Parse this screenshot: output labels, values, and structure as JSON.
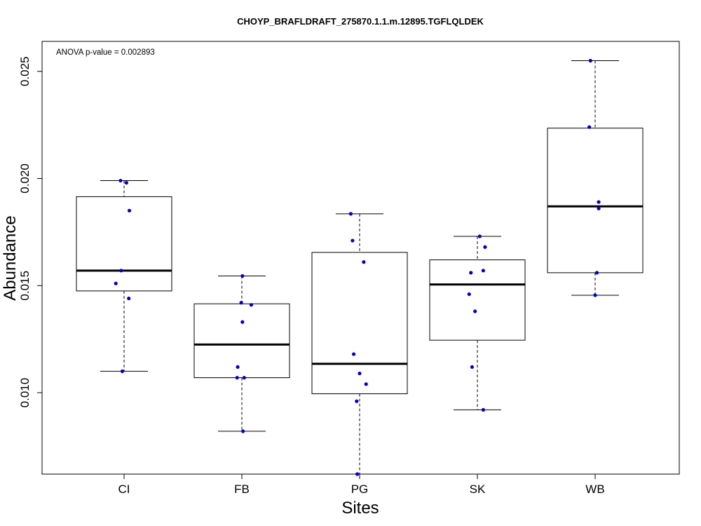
{
  "chart_data": {
    "type": "boxplot",
    "title": "CHOYP_BRAFLDRAFT_275870.1.1.m.12895.TGFLQLDEK",
    "annotation": "ANOVA p-value = 0.002893",
    "xlabel": "Sites",
    "ylabel": "Abundance",
    "categories": [
      "CI",
      "FB",
      "PG",
      "SK",
      "WB"
    ],
    "yticks": [
      "0.010",
      "0.015",
      "0.020",
      "0.025"
    ],
    "ylim": [
      0.0062,
      0.0264
    ],
    "grid": false,
    "colors": {
      "points": "#0000cc",
      "box": "#000000",
      "median": "#000000"
    },
    "boxes": [
      {
        "category": "CI",
        "min": 0.011,
        "q1": 0.01475,
        "median": 0.0157,
        "q3": 0.01915,
        "max": 0.0199
      },
      {
        "category": "FB",
        "min": 0.0082,
        "q1": 0.0107,
        "median": 0.01225,
        "q3": 0.01415,
        "max": 0.01545
      },
      {
        "category": "PG",
        "min": 0.0062,
        "q1": 0.00995,
        "median": 0.01135,
        "q3": 0.01655,
        "max": 0.01835
      },
      {
        "category": "SK",
        "min": 0.0092,
        "q1": 0.01245,
        "median": 0.01505,
        "q3": 0.0162,
        "max": 0.0173
      },
      {
        "category": "WB",
        "min": 0.01455,
        "q1": 0.0156,
        "median": 0.0187,
        "q3": 0.02235,
        "max": 0.0255
      }
    ],
    "points": [
      {
        "category": "CI",
        "values": [
          0.0199,
          0.0198,
          0.0185,
          0.0157,
          0.0151,
          0.0144,
          0.011
        ],
        "jitter": [
          -0.06,
          0.04,
          0.09,
          -0.05,
          -0.14,
          0.08,
          -0.03
        ]
      },
      {
        "category": "FB",
        "values": [
          0.01545,
          0.0142,
          0.0141,
          0.0133,
          0.0112,
          0.0107,
          0.0107,
          0.0082
        ],
        "jitter": [
          0.01,
          -0.01,
          0.16,
          0.01,
          -0.07,
          -0.08,
          0.04,
          0.02
        ]
      },
      {
        "category": "PG",
        "values": [
          0.01835,
          0.0171,
          0.0161,
          0.0118,
          0.0109,
          0.0104,
          0.0096,
          0.0062
        ],
        "jitter": [
          -0.15,
          -0.12,
          0.07,
          -0.1,
          0.0,
          0.11,
          -0.05,
          -0.04
        ]
      },
      {
        "category": "SK",
        "values": [
          0.0173,
          0.0168,
          0.0157,
          0.0156,
          0.0146,
          0.0138,
          0.0112,
          0.0092
        ],
        "jitter": [
          0.04,
          0.13,
          0.1,
          -0.11,
          -0.14,
          -0.04,
          -0.09,
          0.1
        ]
      },
      {
        "category": "WB",
        "values": [
          0.0255,
          0.0224,
          0.0189,
          0.0186,
          0.0156,
          0.01455
        ],
        "jitter": [
          -0.08,
          -0.1,
          0.06,
          0.06,
          0.03,
          0.0
        ]
      }
    ]
  }
}
